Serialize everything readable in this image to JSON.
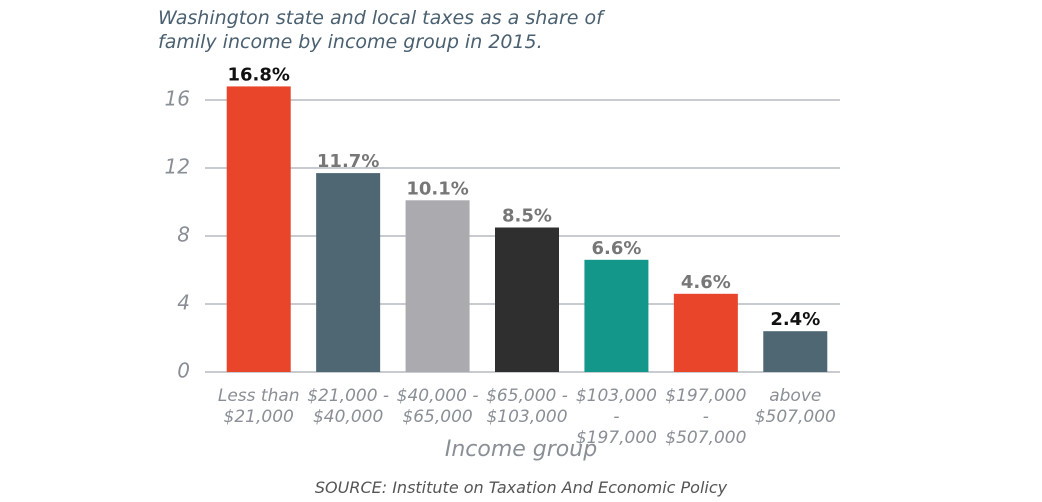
{
  "chart_data": {
    "type": "bar",
    "title": "Washington state and local taxes as a share of family income by income group in 2015.",
    "categories": [
      "Less than $21,000",
      "$21,000 - $40,000",
      "$40,000 - $65,000",
      "$65,000 - $103,000",
      "$103,000 - $197,000",
      "$197,000 - $507,000",
      "above $507,000"
    ],
    "values": [
      16.8,
      11.7,
      10.1,
      8.5,
      6.6,
      4.6,
      2.4
    ],
    "value_labels": [
      "16.8%",
      "11.7%",
      "10.1%",
      "8.5%",
      "6.6%",
      "4.6%",
      "2.4%"
    ],
    "colors": [
      "#e8452a",
      "#4f6673",
      "#ababaf",
      "#2f2f2f",
      "#13978b",
      "#e8452a",
      "#4f6673"
    ],
    "value_label_colors": [
      "#111111",
      "#777777",
      "#777777",
      "#777777",
      "#777777",
      "#777777",
      "#111111"
    ],
    "x_label": "Income group",
    "source": "SOURCE: Institute on Taxation And Economic Policy",
    "ylim": [
      0,
      17
    ],
    "yticks": [
      0,
      4,
      8,
      12,
      16
    ],
    "grid": true
  }
}
